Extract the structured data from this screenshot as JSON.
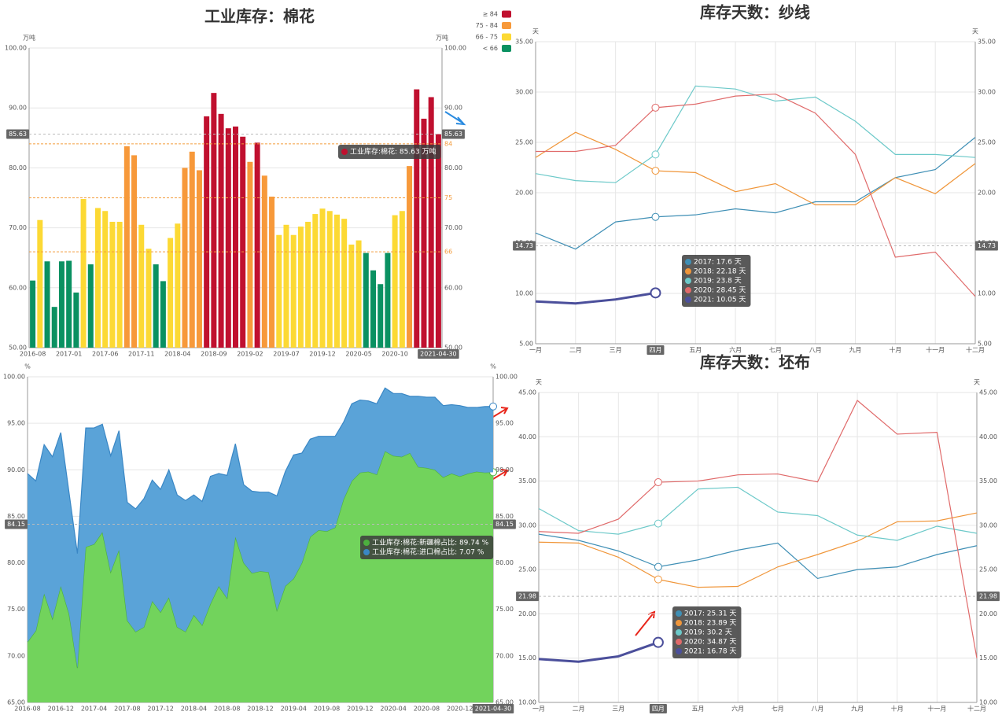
{
  "chart_data": [
    {
      "type": "bar",
      "title": "工业库存：棉花",
      "y_unit": "万吨",
      "categories": [
        "2016-08",
        null,
        null,
        null,
        null,
        "2017-01",
        null,
        null,
        null,
        null,
        "2017-06",
        null,
        null,
        null,
        null,
        "2017-11",
        null,
        null,
        null,
        null,
        "2018-04",
        null,
        null,
        null,
        null,
        "2018-09",
        null,
        null,
        null,
        null,
        "2019-02",
        null,
        null,
        null,
        null,
        "2019-07",
        null,
        null,
        null,
        null,
        "2019-12",
        null,
        null,
        null,
        null,
        "2020-05",
        null,
        null,
        null,
        null,
        "2020-10",
        null,
        null,
        null,
        null,
        null,
        "2021-04-30"
      ],
      "values": [
        61.2,
        71.3,
        64.4,
        56.8,
        64.4,
        64.5,
        59.2,
        74.8,
        63.9,
        73.3,
        72.8,
        71.0,
        71.0,
        83.6,
        82.1,
        70.5,
        66.5,
        63.9,
        61.1,
        68.3,
        70.7,
        80.0,
        82.7,
        79.6,
        88.6,
        92.5,
        89.0,
        86.6,
        86.9,
        85.2,
        81.0,
        84.2,
        78.7,
        75.2,
        68.8,
        70.5,
        68.8,
        70.2,
        71.0,
        72.3,
        73.2,
        72.8,
        72.2,
        71.5,
        67.2,
        67.9,
        65.8,
        62.9,
        60.6,
        65.8,
        72.1,
        72.8,
        80.3,
        93.1,
        88.2,
        91.8,
        85.63
      ],
      "visual_map": [
        {
          "label": "≥ 84",
          "min": 84,
          "color": "#c0102f"
        },
        {
          "label": "75 - 84",
          "min": 75,
          "max": 84,
          "color": "#f7993a"
        },
        {
          "label": "66 - 75",
          "min": 66,
          "max": 75,
          "color": "#fcd934"
        },
        {
          "label": "< 66",
          "max": 66,
          "color": "#0a9161"
        }
      ],
      "mark_lines": [
        84,
        75,
        66
      ],
      "mark_line_color": "#f39c3c",
      "ylim": [
        50,
        100
      ],
      "yticks": [
        {
          "value": 50,
          "label": "50.00"
        },
        {
          "value": 60,
          "label": "60.00"
        },
        {
          "value": 70,
          "label": "70.00"
        },
        {
          "value": 80,
          "label": "80.00"
        },
        {
          "value": 90,
          "label": "90.00"
        },
        {
          "value": 100,
          "label": "100.00"
        }
      ],
      "grid": true,
      "pointer_index": 56,
      "pointer_y": 85.63,
      "tooltip": [
        "工业库存:棉花: 85.63 万吨"
      ]
    },
    {
      "type": "line",
      "title": "库存天数：纱线",
      "y_unit": "天",
      "categories": [
        "一月",
        "二月",
        "三月",
        "四月",
        "五月",
        "六月",
        "七月",
        "八月",
        "九月",
        "十月",
        "十一月",
        "十二月"
      ],
      "series": [
        {
          "color": "#3f8fb5",
          "width": 1.2,
          "values": [
            16.0,
            14.4,
            17.1,
            17.6,
            17.8,
            18.4,
            18.0,
            19.1,
            19.1,
            21.5,
            22.3,
            25.5
          ]
        },
        {
          "color": "#f0963a",
          "width": 1.2,
          "values": [
            23.5,
            26.0,
            24.3,
            22.18,
            22.0,
            20.1,
            20.9,
            18.8,
            18.8,
            21.5,
            19.9,
            22.9
          ]
        },
        {
          "color": "#6cc9c9",
          "width": 1.2,
          "values": [
            21.9,
            21.2,
            21.0,
            23.8,
            30.6,
            30.3,
            29.1,
            29.5,
            27.1,
            23.8,
            23.8,
            23.5
          ]
        },
        {
          "color": "#e06a6a",
          "width": 1.2,
          "values": [
            24.1,
            24.1,
            24.7,
            28.45,
            28.8,
            29.6,
            29.8,
            27.9,
            23.8,
            13.6,
            14.1,
            9.7
          ]
        },
        {
          "color": "#4b4f9b",
          "width": 3,
          "values": [
            9.2,
            9.0,
            9.4,
            10.05,
            null,
            null,
            null,
            null,
            null,
            null,
            null,
            null
          ]
        }
      ],
      "ylim": [
        5,
        35
      ],
      "yticks": [
        {
          "value": 5,
          "label": "5.00"
        },
        {
          "value": 10,
          "label": "10.00"
        },
        {
          "value": 15,
          "label": "15.00"
        },
        {
          "value": 20,
          "label": "20.00"
        },
        {
          "value": 25,
          "label": "25.00"
        },
        {
          "value": 30,
          "label": "30.00"
        },
        {
          "value": 35,
          "label": "35.00"
        }
      ],
      "grid": true,
      "x_grid": true,
      "pointer_index": 3,
      "pointer_y": 14.73,
      "tooltip": [
        "2017: 17.6 天",
        "2018: 22.18 天",
        "2019: 23.8 天",
        "2020: 28.45 天",
        "2021: 10.05 天"
      ]
    },
    {
      "type": "area",
      "y_unit": "%",
      "categories": [
        "2016-08",
        null,
        null,
        null,
        "2016-12",
        null,
        null,
        null,
        "2017-04",
        null,
        null,
        null,
        "2017-08",
        null,
        null,
        null,
        "2017-12",
        null,
        null,
        null,
        "2018-04",
        null,
        null,
        null,
        "2018-08",
        null,
        null,
        null,
        "2018-12",
        null,
        null,
        null,
        "2019-04",
        null,
        null,
        null,
        "2019-08",
        null,
        null,
        null,
        "2019-12",
        null,
        null,
        null,
        "2020-04",
        null,
        null,
        null,
        "2020-08",
        null,
        null,
        null,
        "2020-12",
        null,
        null,
        null,
        "2021-04-30"
      ],
      "series": [
        {
          "color": "#72d35c",
          "line": "#4caf3e",
          "values": [
            71.5,
            72.7,
            76.7,
            74.0,
            77.5,
            74.5,
            68.7,
            81.7,
            82.0,
            83.3,
            79.0,
            81.4,
            73.8,
            72.6,
            73.1,
            75.9,
            74.7,
            76.3,
            73.1,
            72.6,
            74.4,
            73.3,
            75.6,
            77.5,
            76.2,
            82.8,
            80.0,
            78.9,
            79.1,
            79.0,
            74.9,
            77.5,
            78.3,
            80.0,
            82.8,
            83.5,
            83.4,
            83.8,
            86.8,
            88.8,
            89.7,
            89.8,
            89.5,
            92.0,
            91.5,
            91.4,
            91.8,
            90.3,
            90.2,
            90.0,
            89.2,
            89.6,
            89.3,
            89.6,
            89.8,
            89.7,
            89.74
          ]
        },
        {
          "color": "#5aa3d8",
          "line": "#3a87c5",
          "values": [
            18.1,
            16.1,
            16.0,
            17.4,
            16.5,
            13.0,
            12.3,
            12.8,
            12.5,
            11.6,
            12.5,
            12.8,
            12.7,
            13.2,
            13.8,
            13.0,
            13.2,
            13.7,
            14.2,
            14.1,
            12.9,
            13.3,
            13.7,
            12.1,
            13.2,
            10.0,
            8.4,
            8.8,
            8.5,
            8.6,
            12.3,
            12.3,
            13.3,
            11.8,
            10.5,
            10.1,
            10.2,
            9.8,
            8.3,
            8.3,
            7.8,
            7.6,
            7.6,
            6.8,
            6.7,
            6.8,
            6.1,
            7.6,
            7.6,
            7.8,
            7.7,
            7.4,
            7.6,
            7.1,
            6.9,
            7.1,
            7.07
          ]
        }
      ],
      "ylim": [
        65,
        100
      ],
      "yticks": [
        {
          "value": 65,
          "label": "65.00"
        },
        {
          "value": 70,
          "label": "70.00"
        },
        {
          "value": 75,
          "label": "75.00"
        },
        {
          "value": 80,
          "label": "80.00"
        },
        {
          "value": 85,
          "label": "85.00"
        },
        {
          "value": 90,
          "label": "90.00"
        },
        {
          "value": 95,
          "label": "95.00"
        },
        {
          "value": 100,
          "label": "100.00"
        }
      ],
      "grid": true,
      "pointer_index": 56,
      "pointer_y": 84.15,
      "tooltip": [
        "工业库存:棉花:新疆棉占比: 89.74 %",
        "工业库存:棉花:进口棉占比: 7.07 %"
      ]
    },
    {
      "type": "line",
      "title": "库存天数：坯布",
      "y_unit": "天",
      "categories": [
        "一月",
        "二月",
        "三月",
        "四月",
        "五月",
        "六月",
        "七月",
        "八月",
        "九月",
        "十月",
        "十一月",
        "十二月"
      ],
      "series": [
        {
          "color": "#3f8fb5",
          "width": 1.2,
          "values": [
            29.0,
            28.3,
            27.1,
            25.31,
            26.1,
            27.2,
            28.0,
            24.0,
            25.0,
            25.3,
            26.7,
            27.7
          ]
        },
        {
          "color": "#f0963a",
          "width": 1.2,
          "values": [
            28.1,
            28.0,
            26.4,
            23.89,
            23.0,
            23.1,
            25.3,
            26.7,
            28.2,
            30.4,
            30.5,
            31.4
          ]
        },
        {
          "color": "#6cc9c9",
          "width": 1.2,
          "values": [
            31.9,
            29.4,
            29.0,
            30.2,
            34.1,
            34.3,
            31.5,
            31.1,
            28.9,
            28.3,
            29.9,
            29.1
          ]
        },
        {
          "color": "#e06a6a",
          "width": 1.2,
          "values": [
            29.3,
            29.1,
            30.7,
            34.87,
            35.0,
            35.7,
            35.8,
            34.9,
            44.1,
            40.3,
            40.5,
            15.0
          ]
        },
        {
          "color": "#4b4f9b",
          "width": 3,
          "values": [
            14.9,
            14.6,
            15.2,
            16.78,
            null,
            null,
            null,
            null,
            null,
            null,
            null,
            null
          ]
        }
      ],
      "ylim": [
        10,
        45
      ],
      "yticks": [
        {
          "value": 10,
          "label": "10.00"
        },
        {
          "value": 15,
          "label": "15.00"
        },
        {
          "value": 20,
          "label": "20.00"
        },
        {
          "value": 25,
          "label": "25.00"
        },
        {
          "value": 30,
          "label": "30.00"
        },
        {
          "value": 35,
          "label": "35.00"
        },
        {
          "value": 40,
          "label": "40.00"
        },
        {
          "value": 45,
          "label": "45.00"
        }
      ],
      "grid": true,
      "x_grid": true,
      "pointer_index": 3,
      "pointer_y": 21.98,
      "tooltip": [
        "2017: 25.31 天",
        "2018: 23.89 天",
        "2019: 30.2 天",
        "2020: 34.87 天",
        "2021: 16.78 天"
      ]
    }
  ]
}
